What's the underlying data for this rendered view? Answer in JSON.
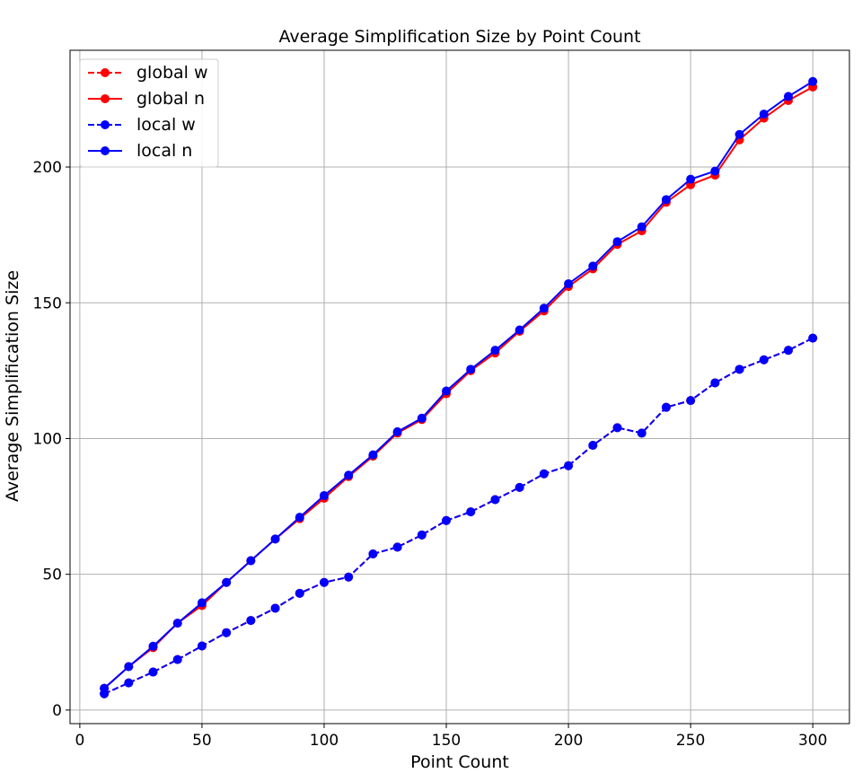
{
  "chart_data": {
    "type": "line",
    "title": "Average Simplification Size by Point Count",
    "xlabel": "Point Count",
    "ylabel": "Average Simplification Size",
    "xlim": [
      -4,
      315
    ],
    "ylim": [
      -5,
      243
    ],
    "xticks": [
      0,
      50,
      100,
      150,
      200,
      250,
      300
    ],
    "yticks": [
      0,
      50,
      100,
      150,
      200
    ],
    "grid": true,
    "legend_position": "top-left",
    "x": [
      10,
      20,
      30,
      40,
      50,
      60,
      70,
      80,
      90,
      100,
      110,
      120,
      130,
      140,
      150,
      160,
      170,
      180,
      190,
      200,
      210,
      220,
      230,
      240,
      250,
      260,
      270,
      280,
      290,
      300
    ],
    "series": [
      {
        "name": "global w",
        "color": "#ff0000",
        "style": "dashed",
        "values": [
          6,
          10,
          14,
          18.6,
          23.6,
          28.5,
          33,
          37.5,
          43,
          47,
          49,
          57.5,
          60,
          64.5,
          69.8,
          73,
          77.5,
          82,
          87,
          90,
          97.5,
          104,
          102,
          111.5,
          114,
          120.5,
          125.5,
          129,
          132.5,
          137
        ]
      },
      {
        "name": "global n",
        "color": "#ff0000",
        "style": "solid",
        "values": [
          8,
          16,
          23,
          32,
          38.5,
          47,
          55,
          63,
          70.5,
          78,
          86,
          93.5,
          102,
          107,
          116.5,
          125,
          131.5,
          139.5,
          147,
          156,
          162.5,
          171.5,
          176.5,
          187,
          193.5,
          197,
          210,
          218,
          224.5,
          229.5
        ]
      },
      {
        "name": "local w",
        "color": "#0000ff",
        "style": "dashed",
        "values": [
          6,
          10,
          14,
          18.6,
          23.6,
          28.5,
          33,
          37.5,
          43,
          47,
          49,
          57.5,
          60,
          64.5,
          69.8,
          73,
          77.5,
          82,
          87,
          90,
          97.5,
          104,
          102,
          111.5,
          114,
          120.5,
          125.5,
          129,
          132.5,
          137
        ]
      },
      {
        "name": "local n",
        "color": "#0000ff",
        "style": "solid",
        "values": [
          8,
          16,
          23.5,
          32,
          39.5,
          47,
          55,
          63,
          71,
          79,
          86.5,
          94,
          102.5,
          107.5,
          117.5,
          125.5,
          132.5,
          140,
          148,
          157,
          163.5,
          172.5,
          178,
          188,
          195.5,
          198.5,
          212,
          219.5,
          226,
          231.5
        ]
      }
    ]
  }
}
